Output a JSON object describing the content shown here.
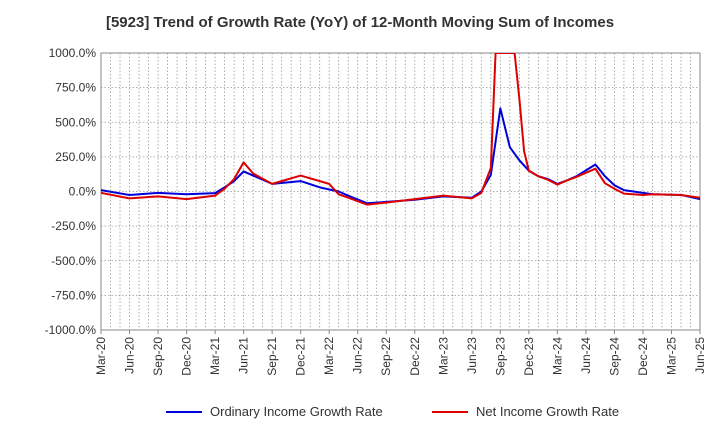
{
  "chart_data": {
    "type": "line",
    "title": "[5923]  Trend of Growth Rate (YoY) of 12-Month Moving Sum of Incomes",
    "xlabel": "",
    "ylabel": "",
    "ylim": [
      -1000,
      1000
    ],
    "y_ticks": [
      "1000.0%",
      "750.0%",
      "500.0%",
      "250.0%",
      "0.0%",
      "-250.0%",
      "-500.0%",
      "-750.0%",
      "-1000.0%"
    ],
    "y_tick_values": [
      1000,
      750,
      500,
      250,
      0,
      -250,
      -500,
      -750,
      -1000
    ],
    "x_ticks": [
      "Mar-20",
      "Jun-20",
      "Sep-20",
      "Dec-20",
      "Mar-21",
      "Jun-21",
      "Sep-21",
      "Dec-21",
      "Mar-22",
      "Jun-22",
      "Sep-22",
      "Dec-22",
      "Mar-23",
      "Jun-23",
      "Sep-23",
      "Dec-23",
      "Mar-24",
      "Jun-24",
      "Sep-24",
      "Dec-24",
      "Mar-25",
      "Jun-25"
    ],
    "grid": true,
    "legend_position": "bottom",
    "series": [
      {
        "name": "Ordinary Income Growth Rate",
        "color": "#0000dd",
        "points": [
          [
            0,
            10
          ],
          [
            3,
            -25
          ],
          [
            6,
            -10
          ],
          [
            9,
            -20
          ],
          [
            12,
            -12
          ],
          [
            13,
            30
          ],
          [
            14,
            75
          ],
          [
            15,
            145
          ],
          [
            16,
            115
          ],
          [
            18,
            55
          ],
          [
            21,
            75
          ],
          [
            23,
            30
          ],
          [
            25,
            0
          ],
          [
            26,
            -30
          ],
          [
            28,
            -85
          ],
          [
            30,
            -75
          ],
          [
            33,
            -60
          ],
          [
            36,
            -35
          ],
          [
            39,
            -45
          ],
          [
            40,
            0
          ],
          [
            41,
            120
          ],
          [
            42,
            600
          ],
          [
            43,
            320
          ],
          [
            44,
            225
          ],
          [
            45,
            150
          ],
          [
            46,
            110
          ],
          [
            47,
            90
          ],
          [
            48,
            55
          ],
          [
            49,
            80
          ],
          [
            50,
            110
          ],
          [
            52,
            195
          ],
          [
            53,
            110
          ],
          [
            54,
            45
          ],
          [
            55,
            10
          ],
          [
            57,
            -10
          ],
          [
            58,
            -20
          ],
          [
            61,
            -25
          ],
          [
            64,
            -70
          ]
        ]
      },
      {
        "name": "Net Income Growth Rate",
        "color": "#dd0000",
        "points": [
          [
            0,
            -10
          ],
          [
            3,
            -50
          ],
          [
            6,
            -35
          ],
          [
            9,
            -55
          ],
          [
            12,
            -30
          ],
          [
            13,
            20
          ],
          [
            14,
            90
          ],
          [
            15,
            210
          ],
          [
            16,
            130
          ],
          [
            18,
            55
          ],
          [
            21,
            115
          ],
          [
            24,
            55
          ],
          [
            25,
            -20
          ],
          [
            26,
            -45
          ],
          [
            28,
            -95
          ],
          [
            30,
            -80
          ],
          [
            33,
            -55
          ],
          [
            36,
            -30
          ],
          [
            39,
            -50
          ],
          [
            40,
            -10
          ],
          [
            41,
            170
          ],
          [
            41.5,
            1000
          ],
          [
            43.5,
            1000
          ],
          [
            44,
            670
          ],
          [
            44.5,
            290
          ],
          [
            45,
            150
          ],
          [
            46,
            110
          ],
          [
            47,
            85
          ],
          [
            48,
            50
          ],
          [
            49,
            80
          ],
          [
            50,
            105
          ],
          [
            52,
            165
          ],
          [
            53,
            60
          ],
          [
            54,
            20
          ],
          [
            55,
            -15
          ],
          [
            57,
            -25
          ],
          [
            58,
            -20
          ],
          [
            61,
            -25
          ],
          [
            64,
            -55
          ]
        ]
      }
    ]
  }
}
